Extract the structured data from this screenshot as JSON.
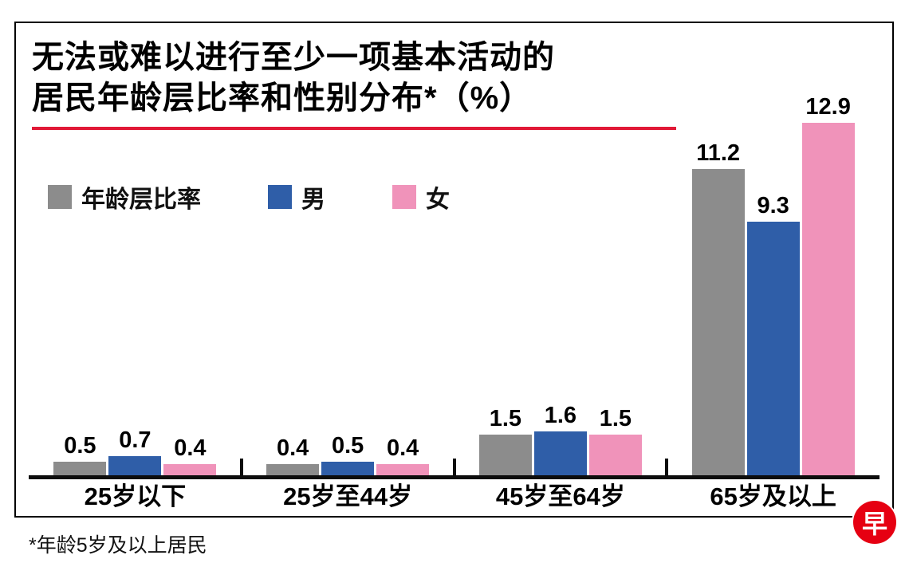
{
  "title": {
    "line1": "无法或难以进行至少一项基本活动的",
    "line2": "居民年龄层比率和性别分布*（%）"
  },
  "footnote": "*年龄5岁及以上居民",
  "logo_text": "早",
  "colors": {
    "age_group": "#8c8c8c",
    "male": "#2f5ea8",
    "female": "#f093ba",
    "underline": "#e11937",
    "axis": "#0d0d0d",
    "logo": "#e60012"
  },
  "chart_data": {
    "type": "bar",
    "title": "无法或难以进行至少一项基本活动的居民年龄层比率和性别分布*（%）",
    "categories": [
      "25岁以下",
      "25岁至44岁",
      "45岁至64岁",
      "65岁及以上"
    ],
    "series": [
      {
        "name": "年龄层比率",
        "color_key": "age_group",
        "values": [
          0.5,
          0.4,
          1.5,
          11.2
        ]
      },
      {
        "name": "男",
        "color_key": "male",
        "values": [
          0.7,
          0.5,
          1.6,
          9.3
        ]
      },
      {
        "name": "女",
        "color_key": "female",
        "values": [
          0.4,
          0.4,
          1.5,
          12.9
        ]
      }
    ],
    "ylim": [
      0,
      13.2
    ],
    "value_labels": true,
    "legend_position": "top-left",
    "grid": false,
    "xlabel": "",
    "ylabel": "%"
  }
}
